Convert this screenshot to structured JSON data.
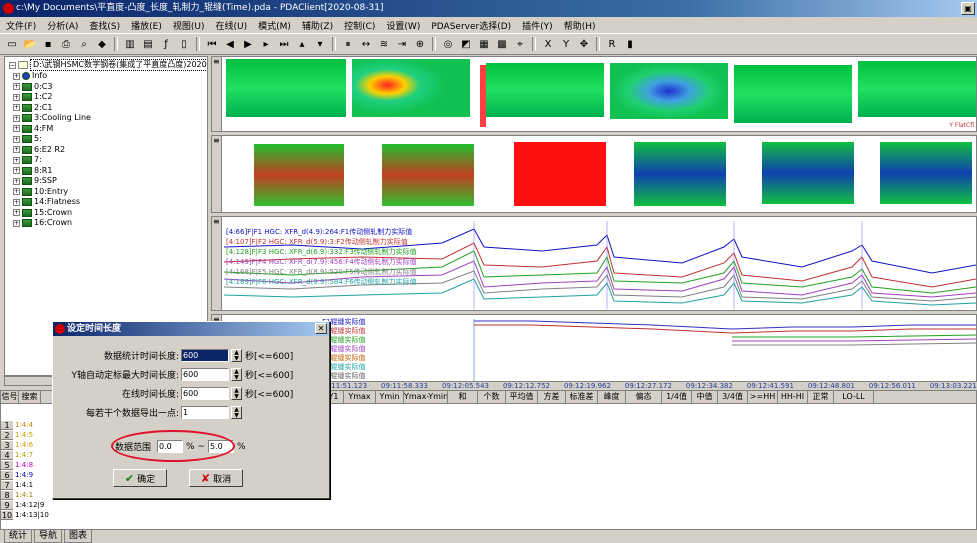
{
  "window": {
    "title": "c:\\My Documents\\平直度-凸度_长度_轧制力_辊缝(Time).pda - PDAClient[2020-08-31]",
    "max_glyph": "▣"
  },
  "menu": [
    "文件(F)",
    "分析(A)",
    "查找(S)",
    "播放(E)",
    "视图(U)",
    "在线(U)",
    "模式(M)",
    "辅助(Z)",
    "控制(C)",
    "设置(W)",
    "PDAServer选择(D)",
    "插件(Y)",
    "帮助(H)"
  ],
  "toolbar_icons": [
    "new-icon",
    "open-icon",
    "save-icon",
    "print-icon",
    "find-icon",
    "tag-icon",
    "sep",
    "filter-icon",
    "chart-icon",
    "func-icon",
    "doc-icon",
    "sep",
    "first-icon",
    "prev-icon",
    "play-icon",
    "next-icon",
    "last-icon",
    "up-icon",
    "down-icon",
    "sep",
    "pause-icon",
    "sync-icon",
    "lines-icon",
    "tab-icon",
    "zoom-icon",
    "sep",
    "target-icon",
    "graph-icon",
    "grid-icon",
    "table-icon",
    "cursor-icon",
    "sep",
    "x-icon",
    "y-icon",
    "xy-icon",
    "sep",
    "rt-icon",
    "bars-icon"
  ],
  "tree": {
    "root": "D:\\武钢HSMC数字钢卷(集成了平直度凸度)2020-08-31",
    "items": [
      {
        "label": "Info",
        "type": "info"
      },
      {
        "label": "0:C3",
        "type": "group"
      },
      {
        "label": "1:C2",
        "type": "group"
      },
      {
        "label": "2:C1",
        "type": "group"
      },
      {
        "label": "3:Cooling Line",
        "type": "group"
      },
      {
        "label": "4:FM",
        "type": "group"
      },
      {
        "label": "5:",
        "type": "group"
      },
      {
        "label": "6:E2 R2",
        "type": "group"
      },
      {
        "label": "7:",
        "type": "group"
      },
      {
        "label": "8:R1",
        "type": "group"
      },
      {
        "label": "9:SSP",
        "type": "group"
      },
      {
        "label": "10:Entry",
        "type": "group"
      },
      {
        "label": "14:Flatness",
        "type": "group"
      },
      {
        "label": "15:Crown",
        "type": "group"
      },
      {
        "label": "16:Crown",
        "type": "group"
      }
    ]
  },
  "line_legend": [
    "[4:66]F|F1 HGC: XFR_d(4.9):264:F1传动侧轧制力实际值",
    "[4:107]F|F2 HGC: XFR_d(5.9):3:F2传动侧轧制力实际值",
    "[4:128]F|F3 HGC: XFR_d(6.9):332:F3传动侧轧制力实际值",
    "[4:149]F|F4 HGC: XFR_d(7.9):456:F4传动侧轧制力实际值",
    "[4:168]F|F5 HGC: XFR_d(8.9):520:F5传动侧轧制力实际值",
    "[4:189]F|F6 HGC: XFR_d(9.9):584:F6传动侧轧制力实际值"
  ],
  "gap_legend": [
    "F1辊缝实际值",
    "F2辊缝实际值",
    "F3辊缝实际值",
    "F4辊缝实际值",
    "F5辊缝实际值",
    "F6辊缝实际值",
    "F7辊缝实际值"
  ],
  "time_axis": [
    "09:11:51.123",
    "09:11:58.333",
    "09:12:05.543",
    "09:12:12.752",
    "09:12:19.962",
    "09:12:27.172",
    "09:12:34.382",
    "09:12:41.591",
    "09:12:48.801",
    "09:12:56.011",
    "09:13:03.221"
  ],
  "grid": {
    "left_headers": [
      "信号",
      "搜索"
    ],
    "headers": [
      "Y2",
      "Y2-Y1",
      "Ymax",
      "Ymin",
      "Ymax-Ymin",
      "和",
      "个数",
      "平均值",
      "方差",
      "标准差",
      "峰度",
      "偏态",
      "1/4值",
      "中值",
      "3/4值",
      ">=HH",
      "HH-HI",
      "正常",
      "LO-LL"
    ],
    "rows": [
      "1:4:4",
      "1:4:5",
      "1:4:6",
      "1:4:7",
      "1:4:8",
      "1:4:9",
      "1:4:1",
      "1:4:1",
      "1:4:12|9",
      "1:4:13|10"
    ]
  },
  "side_label": "Y FlatCfl",
  "dialog": {
    "title": "设定时间长度",
    "fields": [
      {
        "label": "数据统计时间长度:",
        "value": "600",
        "hint": "秒[<=600]",
        "highlight": true
      },
      {
        "label": "Y轴自动定标最大时间长度:",
        "value": "600",
        "hint": "秒[<=600]",
        "highlight": false
      },
      {
        "label": "在线时间长度:",
        "value": "600",
        "hint": "秒[<=600]",
        "highlight": false
      },
      {
        "label": "每若干个数据导出一点:",
        "value": "1",
        "hint": "",
        "highlight": false
      }
    ],
    "range_label": "数据范围",
    "range_from": "0.0",
    "range_to": "5.0",
    "pct": "%",
    "dash": "% ~",
    "ok_label": "确定",
    "cancel_label": "取消"
  },
  "bottom_tabs": [
    "统计",
    "导航",
    "图表"
  ],
  "colors": {
    "accent": "#0a246a",
    "highlight_oval": "#e0102a"
  }
}
